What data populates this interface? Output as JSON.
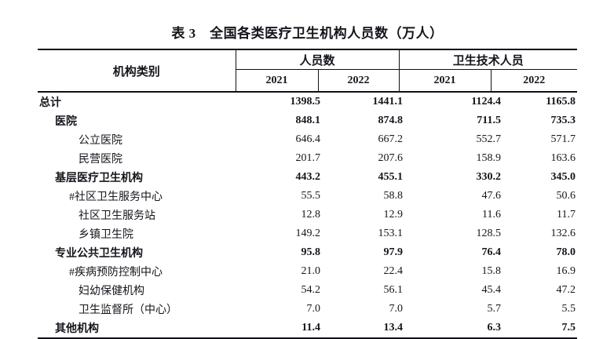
{
  "title": "表 3　全国各类医疗卫生机构人员数（万人）",
  "table": {
    "category_header": "机构类别",
    "groups": [
      {
        "label": "人员数",
        "years": [
          "2021",
          "2022"
        ]
      },
      {
        "label": "卫生技术人员",
        "years": [
          "2021",
          "2022"
        ]
      }
    ],
    "rows": [
      {
        "label": "总计",
        "bold": true,
        "indent": 0,
        "values": [
          "1398.5",
          "1441.1",
          "1124.4",
          "1165.8"
        ]
      },
      {
        "label": "医院",
        "bold": true,
        "indent": 1,
        "values": [
          "848.1",
          "874.8",
          "711.5",
          "735.3"
        ]
      },
      {
        "label": "公立医院",
        "bold": false,
        "indent": 3,
        "values": [
          "646.4",
          "667.2",
          "552.7",
          "571.7"
        ]
      },
      {
        "label": "民营医院",
        "bold": false,
        "indent": 3,
        "values": [
          "201.7",
          "207.6",
          "158.9",
          "163.6"
        ]
      },
      {
        "label": "基层医疗卫生机构",
        "bold": true,
        "indent": 1,
        "values": [
          "443.2",
          "455.1",
          "330.2",
          "345.0"
        ]
      },
      {
        "label": "#社区卫生服务中心",
        "bold": false,
        "indent": 2,
        "values": [
          "55.5",
          "58.8",
          "47.6",
          "50.6"
        ]
      },
      {
        "label": "社区卫生服务站",
        "bold": false,
        "indent": 3,
        "values": [
          "12.8",
          "12.9",
          "11.6",
          "11.7"
        ]
      },
      {
        "label": "乡镇卫生院",
        "bold": false,
        "indent": 3,
        "values": [
          "149.2",
          "153.1",
          "128.5",
          "132.6"
        ]
      },
      {
        "label": "专业公共卫生机构",
        "bold": true,
        "indent": 1,
        "values": [
          "95.8",
          "97.9",
          "76.4",
          "78.0"
        ]
      },
      {
        "label": "#疾病预防控制中心",
        "bold": false,
        "indent": 2,
        "values": [
          "21.0",
          "22.4",
          "15.8",
          "16.9"
        ]
      },
      {
        "label": "妇幼保健机构",
        "bold": false,
        "indent": 3,
        "values": [
          "54.2",
          "56.1",
          "45.4",
          "47.2"
        ]
      },
      {
        "label": "卫生监督所（中心）",
        "bold": false,
        "indent": 3,
        "values": [
          "7.0",
          "7.0",
          "5.7",
          "5.5"
        ]
      },
      {
        "label": "其他机构",
        "bold": true,
        "indent": 1,
        "values": [
          "11.4",
          "13.4",
          "6.3",
          "7.5"
        ]
      }
    ]
  }
}
